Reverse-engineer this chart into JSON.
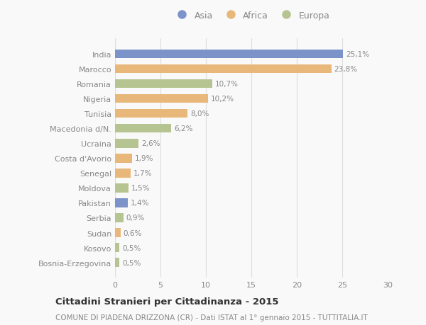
{
  "countries": [
    "India",
    "Marocco",
    "Romania",
    "Nigeria",
    "Tunisia",
    "Macedonia d/N.",
    "Ucraina",
    "Costa d'Avorio",
    "Senegal",
    "Moldova",
    "Pakistan",
    "Serbia",
    "Sudan",
    "Kosovo",
    "Bosnia-Erzegovina"
  ],
  "values": [
    25.1,
    23.8,
    10.7,
    10.2,
    8.0,
    6.2,
    2.6,
    1.9,
    1.7,
    1.5,
    1.4,
    0.9,
    0.6,
    0.5,
    0.5
  ],
  "labels": [
    "25,1%",
    "23,8%",
    "10,7%",
    "10,2%",
    "8,0%",
    "6,2%",
    "2,6%",
    "1,9%",
    "1,7%",
    "1,5%",
    "1,4%",
    "0,9%",
    "0,6%",
    "0,5%",
    "0,5%"
  ],
  "continent": [
    "Asia",
    "Africa",
    "Europa",
    "Africa",
    "Africa",
    "Europa",
    "Europa",
    "Africa",
    "Africa",
    "Europa",
    "Asia",
    "Europa",
    "Africa",
    "Europa",
    "Europa"
  ],
  "colors": {
    "Asia": "#7b93c8",
    "Africa": "#e8b87a",
    "Europa": "#b5c490"
  },
  "legend_colors": {
    "Asia": "#7b93c8",
    "Africa": "#e8b87a",
    "Europa": "#b5c490"
  },
  "title": "Cittadini Stranieri per Cittadinanza - 2015",
  "subtitle": "COMUNE DI PIADENA DRIZZONA (CR) - Dati ISTAT al 1° gennaio 2015 - TUTTITALIA.IT",
  "xlim": [
    0,
    30
  ],
  "xticks": [
    0,
    5,
    10,
    15,
    20,
    25,
    30
  ],
  "background_color": "#f9f9f9",
  "grid_color": "#dddddd",
  "bar_height": 0.6,
  "text_color": "#888888",
  "title_color": "#333333",
  "subtitle_color": "#888888",
  "label_fontsize": 7.5,
  "tick_fontsize": 8.0,
  "legend_fontsize": 9.0,
  "title_fontsize": 9.5,
  "subtitle_fontsize": 7.5
}
